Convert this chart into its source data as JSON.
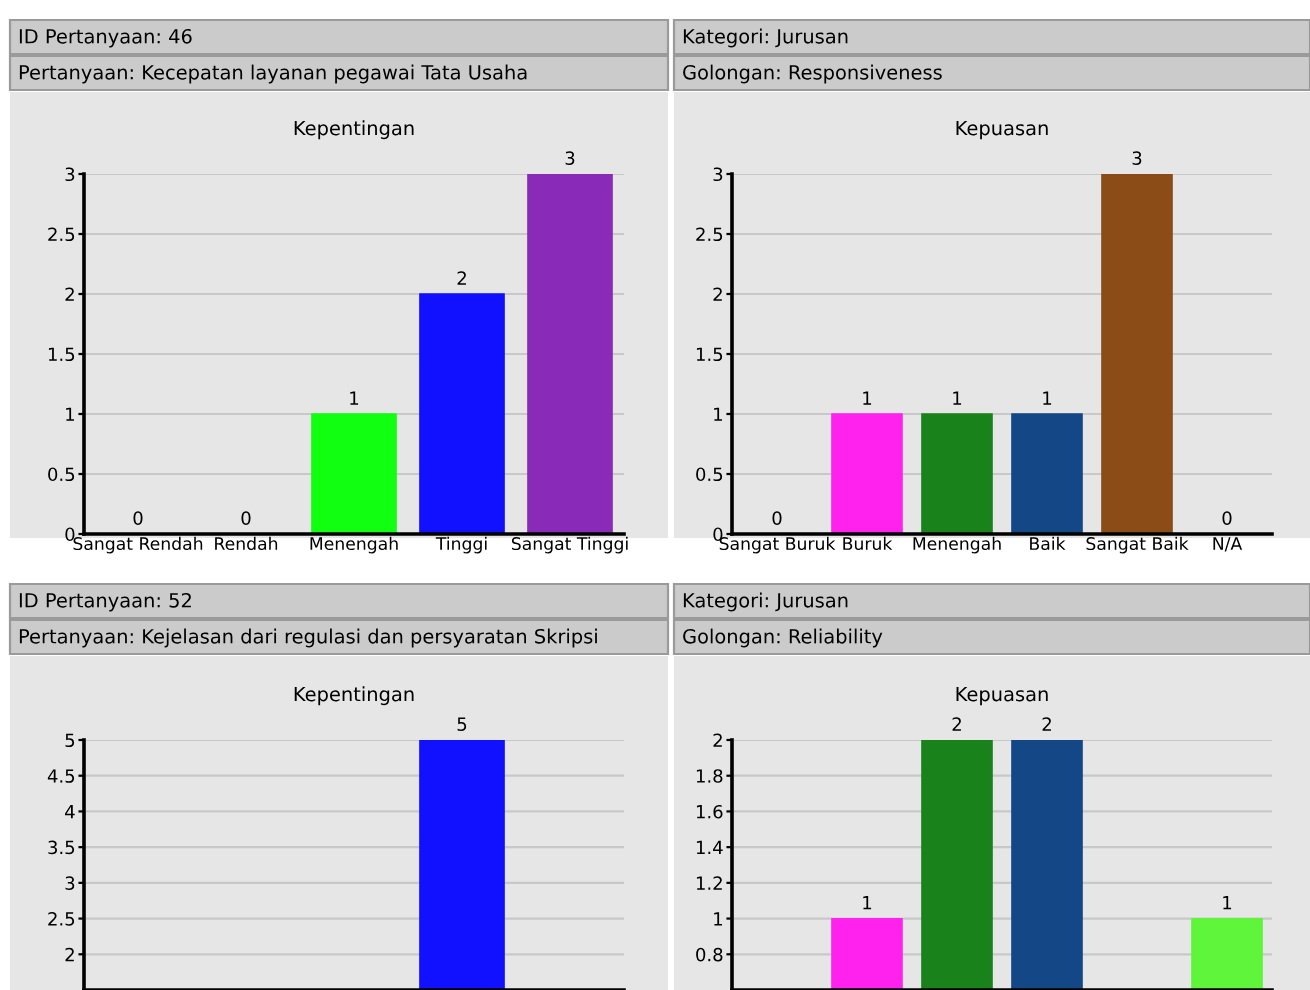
{
  "chart_data": [
    {
      "type": "bar",
      "title": "Kepentingan",
      "annotations": [
        "ID Pertanyaan: 46",
        "Pertanyaan: Kecepatan layanan pegawai Tata Usaha"
      ],
      "categories": [
        "Sangat Rendah",
        "Rendah",
        "Menengah",
        "Tinggi",
        "Sangat Tinggi"
      ],
      "values": [
        0,
        0,
        1,
        2,
        3
      ],
      "colors": [
        "#11ff11",
        "#11ff11",
        "#11ff11",
        "#1111ff",
        "#8a2ab8"
      ],
      "ylim": [
        0,
        3
      ],
      "yticks": [
        0,
        0.5,
        1,
        1.5,
        2,
        2.5,
        3
      ],
      "grid": "y",
      "data_labels": true
    },
    {
      "type": "bar",
      "title": "Kepuasan",
      "annotations": [
        "Kategori: Jurusan",
        "Golongan: Responsiveness"
      ],
      "categories": [
        "Sangat Buruk",
        "Buruk",
        "Menengah",
        "Baik",
        "Sangat Baik",
        "N/A"
      ],
      "values": [
        0,
        1,
        1,
        1,
        3,
        0
      ],
      "colors": [
        "#ff22ee",
        "#ff22ee",
        "#1a821a",
        "#134785",
        "#8b4c17",
        "#5ef53a"
      ],
      "ylim": [
        0,
        3
      ],
      "yticks": [
        0,
        0.5,
        1,
        1.5,
        2,
        2.5,
        3
      ],
      "grid": "y",
      "data_labels": true
    },
    {
      "type": "bar",
      "title": "Kepentingan",
      "annotations": [
        "ID Pertanyaan: 52",
        "Pertanyaan: Kejelasan dari regulasi dan persyaratan Skripsi"
      ],
      "categories": [
        null,
        null,
        null,
        null,
        null
      ],
      "values": [
        null,
        null,
        null,
        5,
        null
      ],
      "colors": [
        "#11ff11",
        "#11ff11",
        "#11ff11",
        "#1111ff",
        "#8a2ab8"
      ],
      "ylim": [
        1.5,
        5
      ],
      "yticks": [
        2,
        2.5,
        3,
        3.5,
        4,
        4.5,
        5
      ],
      "grid": "y",
      "data_labels": true,
      "tick_labels": "y"
    },
    {
      "type": "bar",
      "title": "Kepuasan",
      "annotations": [
        "Kategori: Jurusan",
        "Golongan: Reliability"
      ],
      "categories": [
        null,
        null,
        null,
        null,
        null,
        null
      ],
      "values": [
        null,
        1,
        2,
        2,
        null,
        1
      ],
      "colors": [
        "#ff22ee",
        "#ff22ee",
        "#1a821a",
        "#134785",
        "#8b4c17",
        "#5ef53a"
      ],
      "ylim": [
        0.6,
        2
      ],
      "yticks": [
        0.8,
        1,
        1.2,
        1.4,
        1.6,
        1.8,
        2
      ],
      "grid": "y",
      "data_labels": true,
      "tick_labels": "y"
    }
  ]
}
